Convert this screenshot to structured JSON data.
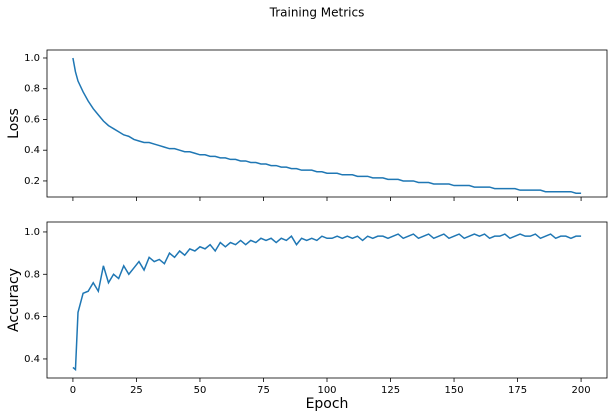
{
  "chart_data": {
    "type": "line",
    "title": "Training Metrics",
    "xlabel": "Epoch",
    "x": [
      0,
      1,
      2,
      4,
      6,
      8,
      10,
      12,
      14,
      16,
      18,
      20,
      22,
      24,
      26,
      28,
      30,
      32,
      34,
      36,
      38,
      40,
      42,
      44,
      46,
      48,
      50,
      52,
      54,
      56,
      58,
      60,
      62,
      64,
      66,
      68,
      70,
      72,
      74,
      76,
      78,
      80,
      82,
      84,
      86,
      88,
      90,
      92,
      94,
      96,
      98,
      100,
      102,
      104,
      106,
      108,
      110,
      112,
      114,
      116,
      118,
      120,
      122,
      124,
      126,
      128,
      130,
      132,
      134,
      136,
      138,
      140,
      142,
      144,
      146,
      148,
      150,
      152,
      154,
      156,
      158,
      160,
      162,
      164,
      166,
      168,
      170,
      172,
      174,
      176,
      178,
      180,
      182,
      184,
      186,
      188,
      190,
      192,
      194,
      196,
      198,
      200
    ],
    "xlim": [
      -10.2,
      210.2
    ],
    "xticks": [
      0,
      25,
      50,
      75,
      100,
      125,
      150,
      175,
      200
    ],
    "panels": [
      {
        "ylabel": "Loss",
        "ylim": [
          0.0955,
          1.052
        ],
        "yticks": [
          {
            "value": 0.2,
            "label": "0.2"
          },
          {
            "value": 0.4,
            "label": "0.4"
          },
          {
            "value": 0.6,
            "label": "0.6"
          },
          {
            "value": 0.8,
            "label": "0.8"
          },
          {
            "value": 1.0,
            "label": "1.0"
          }
        ],
        "series": [
          {
            "color": "#1f77b4",
            "values": [
              1.0,
              0.91,
              0.85,
              0.78,
              0.72,
              0.67,
              0.63,
              0.59,
              0.56,
              0.54,
              0.52,
              0.5,
              0.49,
              0.47,
              0.46,
              0.45,
              0.45,
              0.44,
              0.43,
              0.42,
              0.41,
              0.41,
              0.4,
              0.39,
              0.39,
              0.38,
              0.37,
              0.37,
              0.36,
              0.36,
              0.35,
              0.35,
              0.34,
              0.34,
              0.33,
              0.33,
              0.32,
              0.32,
              0.31,
              0.31,
              0.3,
              0.3,
              0.29,
              0.29,
              0.28,
              0.28,
              0.27,
              0.27,
              0.27,
              0.26,
              0.26,
              0.25,
              0.25,
              0.25,
              0.24,
              0.24,
              0.24,
              0.23,
              0.23,
              0.23,
              0.22,
              0.22,
              0.22,
              0.21,
              0.21,
              0.21,
              0.2,
              0.2,
              0.2,
              0.19,
              0.19,
              0.19,
              0.18,
              0.18,
              0.18,
              0.18,
              0.17,
              0.17,
              0.17,
              0.17,
              0.16,
              0.16,
              0.16,
              0.16,
              0.15,
              0.15,
              0.15,
              0.15,
              0.15,
              0.14,
              0.14,
              0.14,
              0.14,
              0.14,
              0.13,
              0.13,
              0.13,
              0.13,
              0.13,
              0.13,
              0.12,
              0.12
            ]
          }
        ]
      },
      {
        "ylabel": "Accuracy",
        "ylim": [
          0.31,
          1.047
        ],
        "yticks": [
          {
            "value": 0.4,
            "label": "0.4"
          },
          {
            "value": 0.6,
            "label": "0.6"
          },
          {
            "value": 0.8,
            "label": "0.8"
          },
          {
            "value": 1.0,
            "label": "1.0"
          }
        ],
        "series": [
          {
            "color": "#1f77b4",
            "values": [
              0.36,
              0.35,
              0.62,
              0.71,
              0.72,
              0.76,
              0.72,
              0.84,
              0.76,
              0.8,
              0.78,
              0.84,
              0.8,
              0.83,
              0.86,
              0.82,
              0.88,
              0.86,
              0.87,
              0.85,
              0.9,
              0.88,
              0.91,
              0.89,
              0.92,
              0.91,
              0.93,
              0.92,
              0.94,
              0.91,
              0.95,
              0.93,
              0.95,
              0.94,
              0.96,
              0.94,
              0.96,
              0.95,
              0.97,
              0.96,
              0.97,
              0.95,
              0.97,
              0.96,
              0.98,
              0.94,
              0.97,
              0.96,
              0.97,
              0.96,
              0.98,
              0.97,
              0.97,
              0.98,
              0.97,
              0.98,
              0.97,
              0.98,
              0.96,
              0.98,
              0.97,
              0.98,
              0.98,
              0.97,
              0.98,
              0.99,
              0.97,
              0.98,
              0.99,
              0.97,
              0.98,
              0.99,
              0.97,
              0.98,
              0.99,
              0.97,
              0.98,
              0.99,
              0.97,
              0.98,
              0.99,
              0.98,
              0.99,
              0.97,
              0.98,
              0.98,
              0.99,
              0.97,
              0.98,
              0.99,
              0.98,
              0.98,
              0.99,
              0.97,
              0.98,
              0.99,
              0.97,
              0.98,
              0.98,
              0.97,
              0.98,
              0.98
            ]
          }
        ]
      }
    ]
  }
}
